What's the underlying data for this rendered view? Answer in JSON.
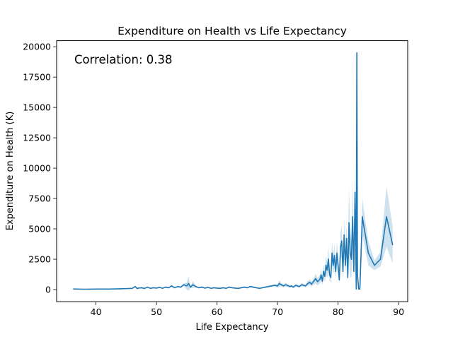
{
  "chart_data": {
    "type": "line",
    "title": "Expenditure on Health vs Life Expectancy",
    "xlabel": "Life Expectancy",
    "ylabel": "Expenditure on Health (K)",
    "annotation": "Correlation: 0.38",
    "xlim": [
      33.5,
      91.5
    ],
    "ylim": [
      -1000,
      20500
    ],
    "xticks": [
      40,
      50,
      60,
      70,
      80,
      90
    ],
    "yticks": [
      0,
      2500,
      5000,
      7500,
      10000,
      12500,
      15000,
      17500,
      20000
    ],
    "grid": false,
    "line_color": "#1f77b4",
    "band_color": "#1f77b4",
    "series": [
      {
        "x": [
          36.3,
          38,
          40,
          42,
          44,
          45,
          46,
          46.5,
          46.8,
          47,
          47.5,
          48,
          48.5,
          49,
          49.5,
          50,
          50.5,
          51,
          51.5,
          52,
          52.5,
          53,
          53.5,
          54,
          54.5,
          55,
          55.3,
          55.6,
          56,
          56.5,
          57,
          57.5,
          58,
          58.5,
          59,
          59.5,
          60,
          60.5,
          61,
          61.5,
          62,
          62.5,
          63,
          63.5,
          64,
          64.5,
          65,
          65.5,
          66,
          66.5,
          67,
          67.5,
          68,
          68.5,
          69,
          69.5,
          70,
          70.3,
          70.6,
          71,
          71.3,
          71.6,
          72,
          72.3,
          72.6,
          73,
          73.3,
          73.6,
          74,
          74.3,
          74.6,
          75,
          75.3,
          75.6,
          76,
          76.3,
          76.6,
          77,
          77.2,
          77.4,
          77.6,
          77.8,
          78,
          78.2,
          78.4,
          78.6,
          78.8,
          79,
          79.2,
          79.4,
          79.6,
          79.8,
          80,
          80.2,
          80.4,
          80.6,
          80.8,
          81,
          81.2,
          81.4,
          81.6,
          81.8,
          82,
          82.2,
          82.4,
          82.6,
          82.8,
          83,
          83.1,
          83.2,
          83.4,
          83.6,
          84,
          85,
          86,
          87,
          88,
          89
        ],
        "y": [
          50,
          30,
          40,
          40,
          60,
          80,
          100,
          250,
          80,
          120,
          150,
          90,
          200,
          100,
          150,
          120,
          180,
          100,
          200,
          150,
          300,
          150,
          250,
          200,
          400,
          300,
          500,
          200,
          400,
          250,
          150,
          200,
          120,
          180,
          100,
          150,
          120,
          100,
          150,
          100,
          200,
          150,
          120,
          100,
          150,
          200,
          150,
          250,
          200,
          150,
          100,
          150,
          200,
          250,
          300,
          350,
          300,
          500,
          400,
          300,
          400,
          350,
          250,
          300,
          200,
          350,
          300,
          250,
          400,
          350,
          300,
          500,
          600,
          450,
          700,
          900,
          650,
          850,
          1200,
          700,
          1500,
          1100,
          2000,
          1600,
          2500,
          1200,
          1000,
          3000,
          2000,
          2800,
          1500,
          3000,
          2000,
          800,
          3500,
          4000,
          1500,
          4500,
          2000,
          4200,
          1000,
          5500,
          3000,
          2500,
          6000,
          1500,
          8000,
          50,
          19500,
          1200,
          50,
          50,
          6000,
          3000,
          2000,
          2500,
          6000,
          3700
        ],
        "band_half": [
          10,
          10,
          10,
          10,
          15,
          20,
          30,
          60,
          20,
          30,
          40,
          30,
          50,
          30,
          40,
          30,
          50,
          30,
          60,
          40,
          80,
          40,
          60,
          50,
          120,
          300,
          600,
          60,
          300,
          80,
          40,
          60,
          30,
          50,
          30,
          40,
          30,
          30,
          40,
          30,
          60,
          40,
          30,
          30,
          40,
          60,
          40,
          70,
          60,
          40,
          30,
          40,
          60,
          70,
          80,
          100,
          150,
          250,
          150,
          120,
          150,
          130,
          80,
          100,
          70,
          120,
          100,
          90,
          150,
          120,
          100,
          200,
          250,
          180,
          300,
          400,
          300,
          350,
          500,
          300,
          600,
          450,
          800,
          600,
          1000,
          500,
          400,
          1000,
          800,
          1000,
          600,
          1000,
          800,
          300,
          1200,
          1300,
          600,
          1500,
          800,
          1500,
          500,
          3000,
          2000,
          1500,
          3000,
          700,
          3000,
          30,
          200,
          600,
          30,
          30,
          1500,
          1000,
          400,
          600,
          2500,
          1500
        ]
      }
    ]
  }
}
